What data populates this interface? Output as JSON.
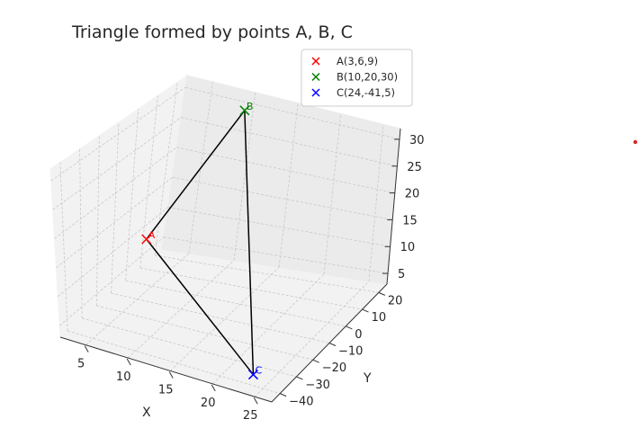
{
  "chart_data": {
    "type": "scatter",
    "projection": "3d",
    "title": "Triangle formed by points A, B, C",
    "xlabel": "X",
    "ylabel": "Y",
    "zlabel": "",
    "x_ticks": [
      "5",
      "10",
      "15",
      "20",
      "25"
    ],
    "y_ticks": [
      "−40",
      "−30",
      "−20",
      "−10",
      "0",
      "10",
      "20"
    ],
    "z_ticks": [
      "5",
      "10",
      "15",
      "20",
      "25",
      "30"
    ],
    "grid": true,
    "legend_placement": "upper-right",
    "points": [
      {
        "name": "A(3,6,9)",
        "label": "A",
        "x": 3,
        "y": 6,
        "z": 9,
        "marker": "x",
        "color": "#ff0000"
      },
      {
        "name": "B(10,20,30)",
        "label": "B",
        "x": 10,
        "y": 20,
        "z": 30,
        "marker": "x",
        "color": "#008000"
      },
      {
        "name": "C(24,-41,5)",
        "label": "C",
        "x": 24,
        "y": -41,
        "z": 5,
        "marker": "x",
        "color": "#0000ff"
      }
    ],
    "edges": [
      [
        "A",
        "B"
      ],
      [
        "B",
        "C"
      ],
      [
        "C",
        "A"
      ]
    ],
    "edge_color": "#000000",
    "stray_dot_color": "#d62728"
  }
}
